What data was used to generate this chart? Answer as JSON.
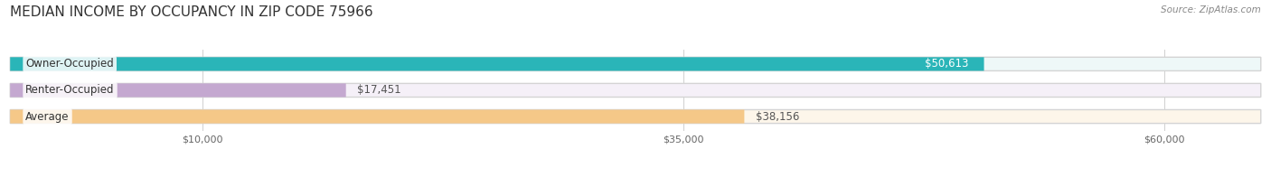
{
  "title": "MEDIAN INCOME BY OCCUPANCY IN ZIP CODE 75966",
  "source": "Source: ZipAtlas.com",
  "categories": [
    "Owner-Occupied",
    "Renter-Occupied",
    "Average"
  ],
  "values": [
    50613,
    17451,
    38156
  ],
  "bar_colors": [
    "#2ab5b8",
    "#c4a8d0",
    "#f5c888"
  ],
  "bar_bg_colors": [
    "#eef8f8",
    "#f5f0f8",
    "#fdf6ea"
  ],
  "value_labels": [
    "$50,613",
    "$17,451",
    "$38,156"
  ],
  "value_label_inside": [
    true,
    false,
    false
  ],
  "x_ticks": [
    10000,
    35000,
    60000
  ],
  "x_tick_labels": [
    "$10,000",
    "$35,000",
    "$60,000"
  ],
  "xlim": [
    0,
    65000
  ],
  "title_fontsize": 11,
  "label_fontsize": 8.5,
  "tick_fontsize": 8,
  "source_fontsize": 7.5,
  "bar_height": 0.52,
  "background_color": "#ffffff"
}
